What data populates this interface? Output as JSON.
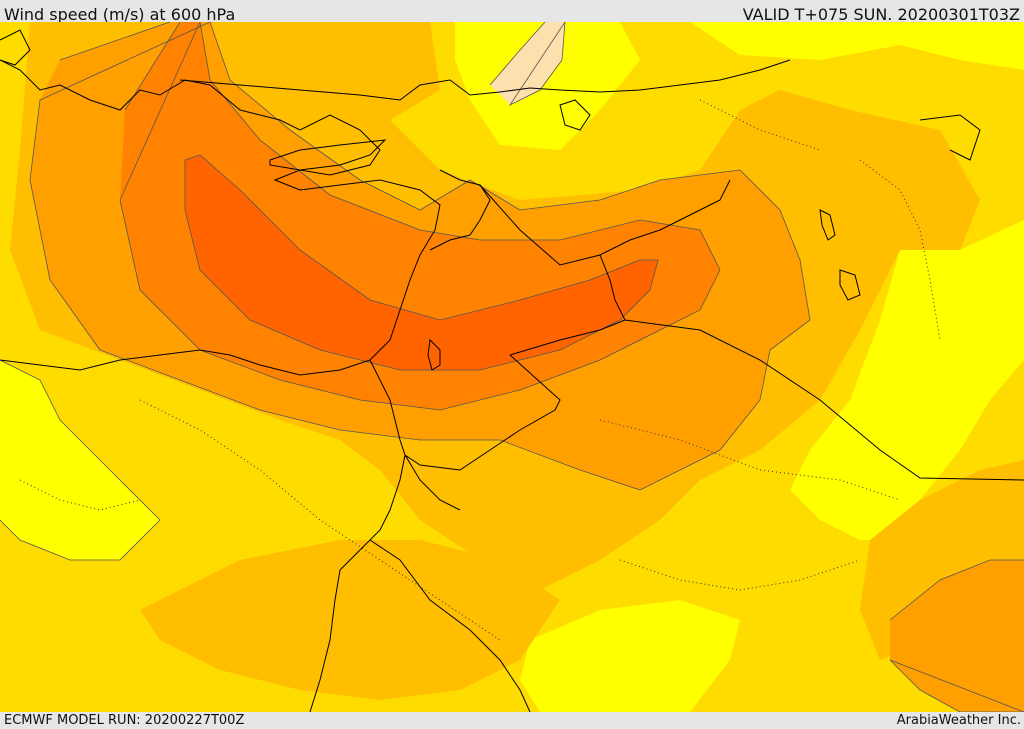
{
  "header": {
    "title": "Wind speed (m/s) at 600 hPa",
    "valid_time": "VALID T+075 SUN. 20200301T03Z"
  },
  "footer": {
    "model_run": "ECMWF MODEL RUN: 20200227T00Z",
    "credit": "ArabiaWeather Inc."
  },
  "map": {
    "shading_colors": {
      "very_light": "#fde0ad",
      "light": "#ffff00",
      "low": "#ffdc00",
      "moderate": "#ffbe00",
      "elevated": "#ffa000",
      "high": "#ff8200",
      "max": "#ff6400"
    },
    "contour_color": "#555555",
    "border_color": "#000000"
  }
}
